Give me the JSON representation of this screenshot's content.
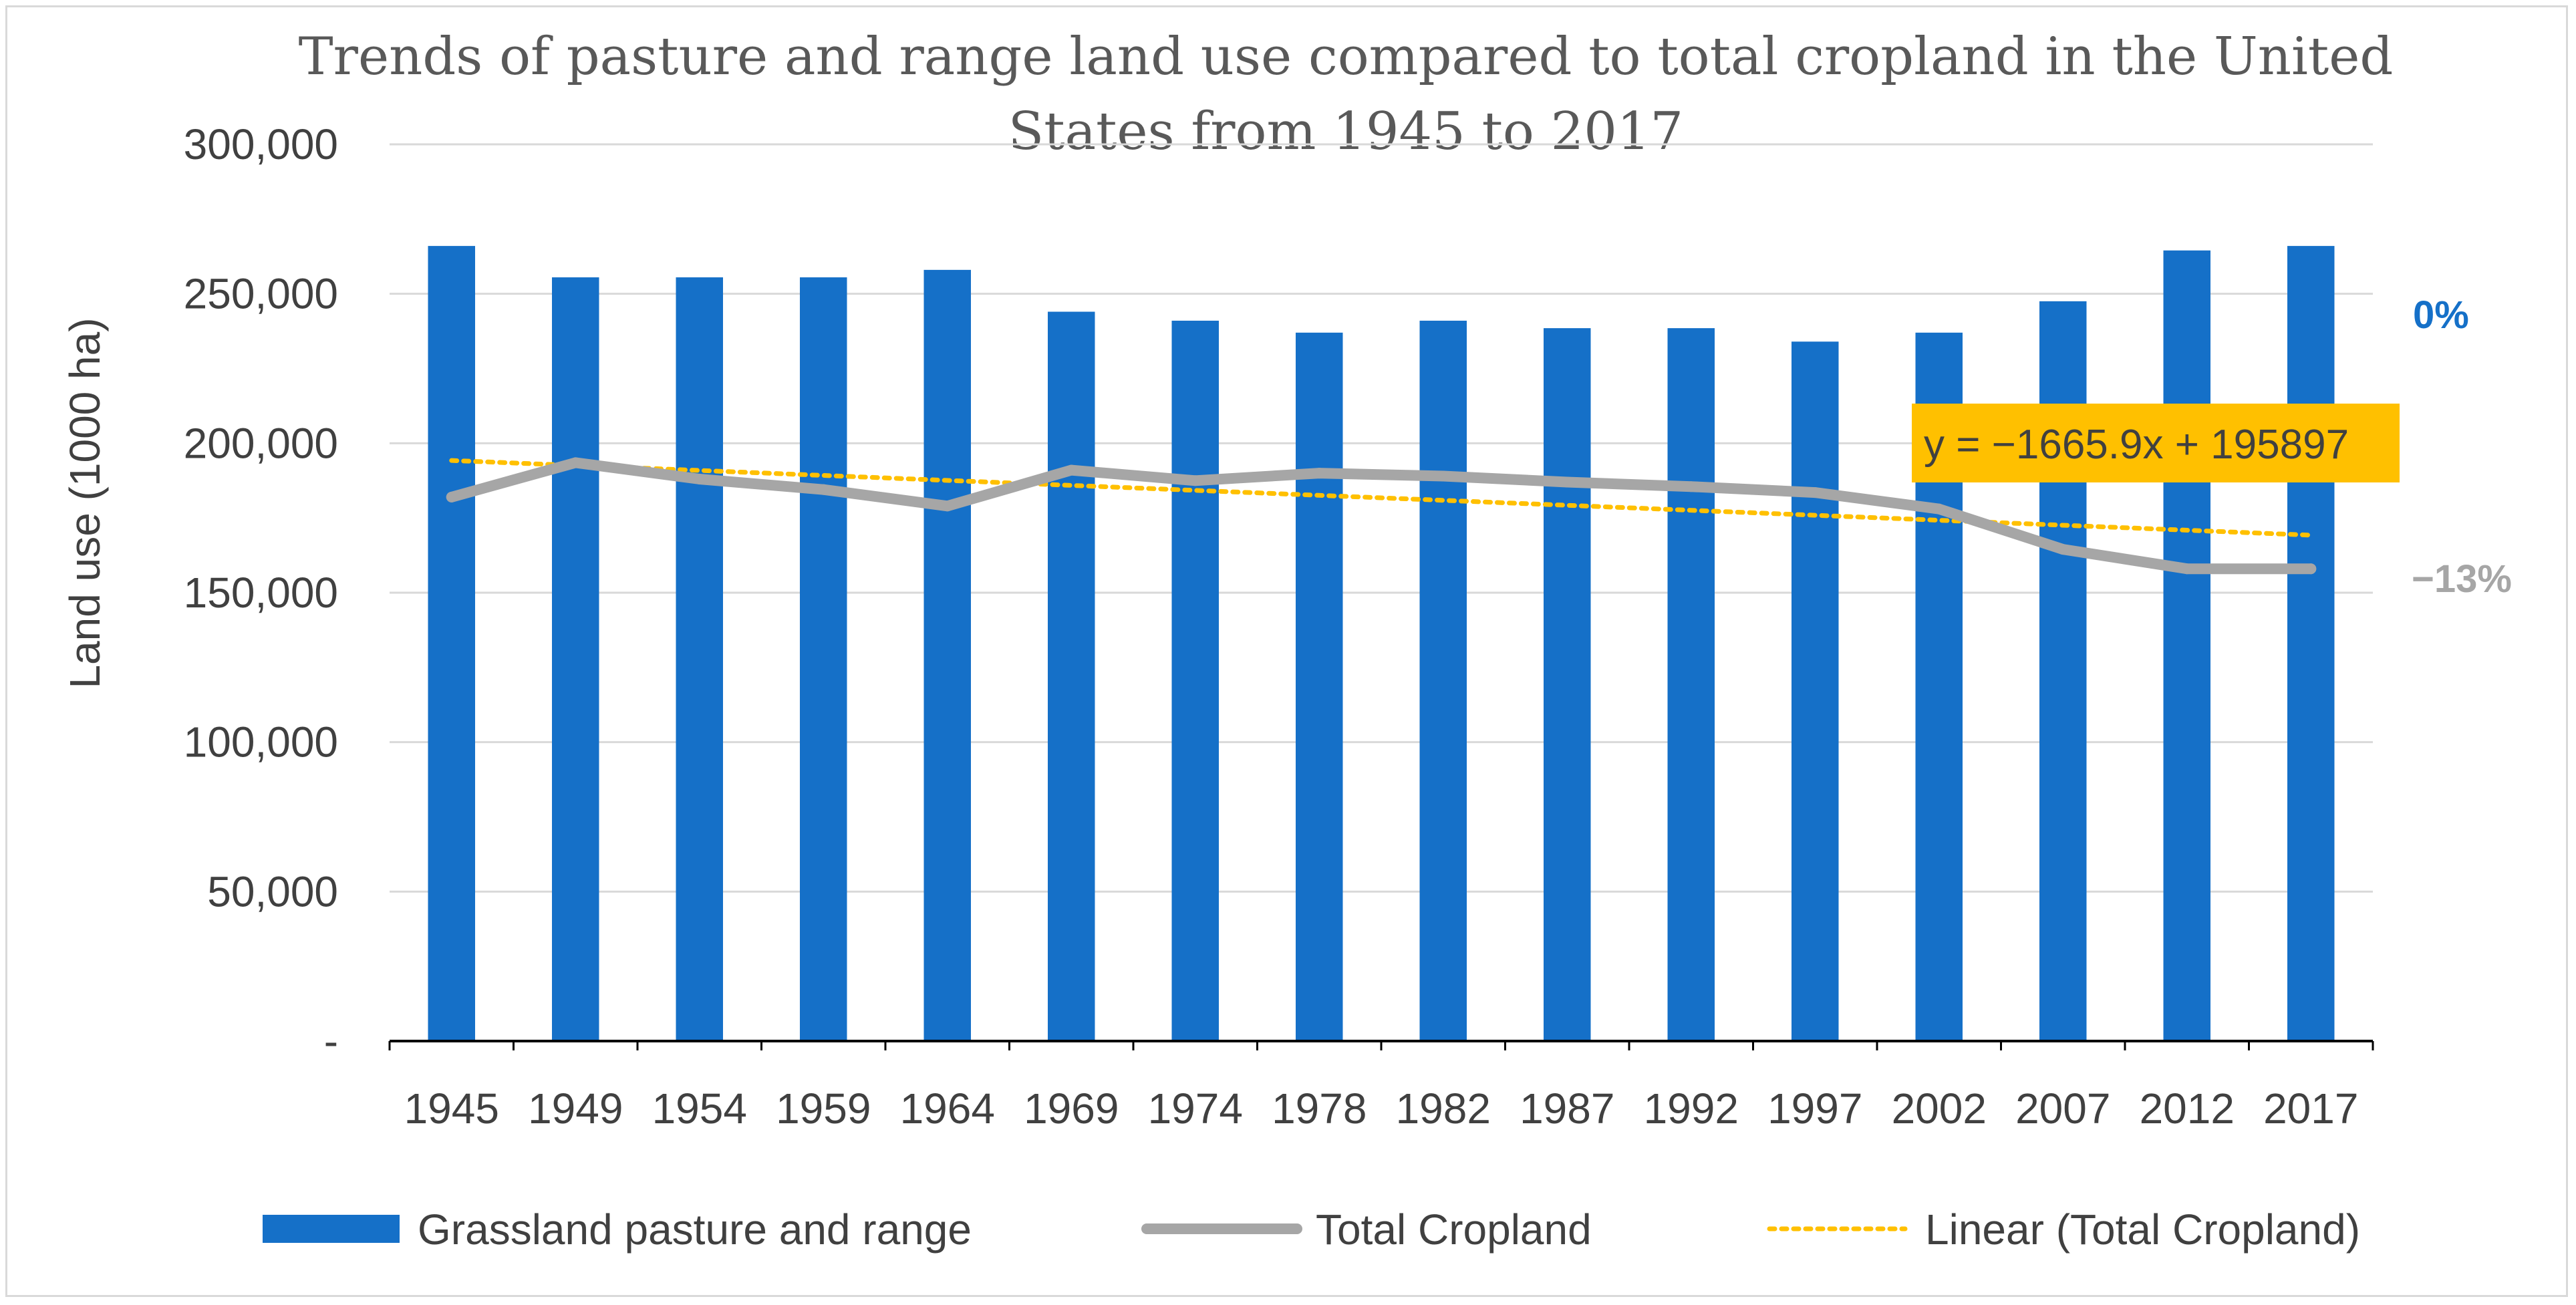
{
  "chart_data": {
    "type": "bar",
    "title": "Trends of pasture and range land use  compared to total cropland in the United States from 1945 to 2017",
    "title_lines": [
      "Trends of pasture and range land use  compared to total cropland in the United",
      "States from 1945 to 2017"
    ],
    "xlabel": "",
    "ylabel": "Land use (1000 ha)",
    "ylim": [
      0,
      300000
    ],
    "yticks": [
      0,
      50000,
      100000,
      150000,
      200000,
      250000,
      300000
    ],
    "ytick_labels": [
      "-",
      "50,000",
      "100,000",
      "150,000",
      "200,000",
      "250,000",
      "300,000"
    ],
    "grid": true,
    "legend_position": "bottom",
    "categories": [
      "1945",
      "1949",
      "1954",
      "1959",
      "1964",
      "1969",
      "1974",
      "1978",
      "1982",
      "1987",
      "1992",
      "1997",
      "2002",
      "2007",
      "2012",
      "2017"
    ],
    "series": [
      {
        "name": "Grassland pasture and range",
        "kind": "bar",
        "color": "#1570c8",
        "values": [
          266000,
          255500,
          255500,
          255500,
          258000,
          244000,
          241000,
          237000,
          241000,
          238500,
          238500,
          234000,
          237000,
          247500,
          264500,
          266000
        ]
      },
      {
        "name": "Total Cropland",
        "kind": "line",
        "color": "#a6a6a6",
        "values": [
          182000,
          193500,
          188000,
          184500,
          179000,
          191000,
          187500,
          190000,
          189000,
          187000,
          185500,
          183500,
          178000,
          164500,
          158000,
          158000
        ]
      },
      {
        "name": "Linear (Total Cropland)",
        "kind": "trendline",
        "color": "#ffc000",
        "intercept": 195897,
        "slope": -1665.9
      }
    ],
    "annotations": {
      "equation": "y = −1665.9x + 195897",
      "equation_bg": "#ffc000",
      "grassland_change": "0%",
      "grassland_change_color": "#1570c8",
      "cropland_change": "−13%",
      "cropland_change_color": "#a6a6a6"
    }
  }
}
